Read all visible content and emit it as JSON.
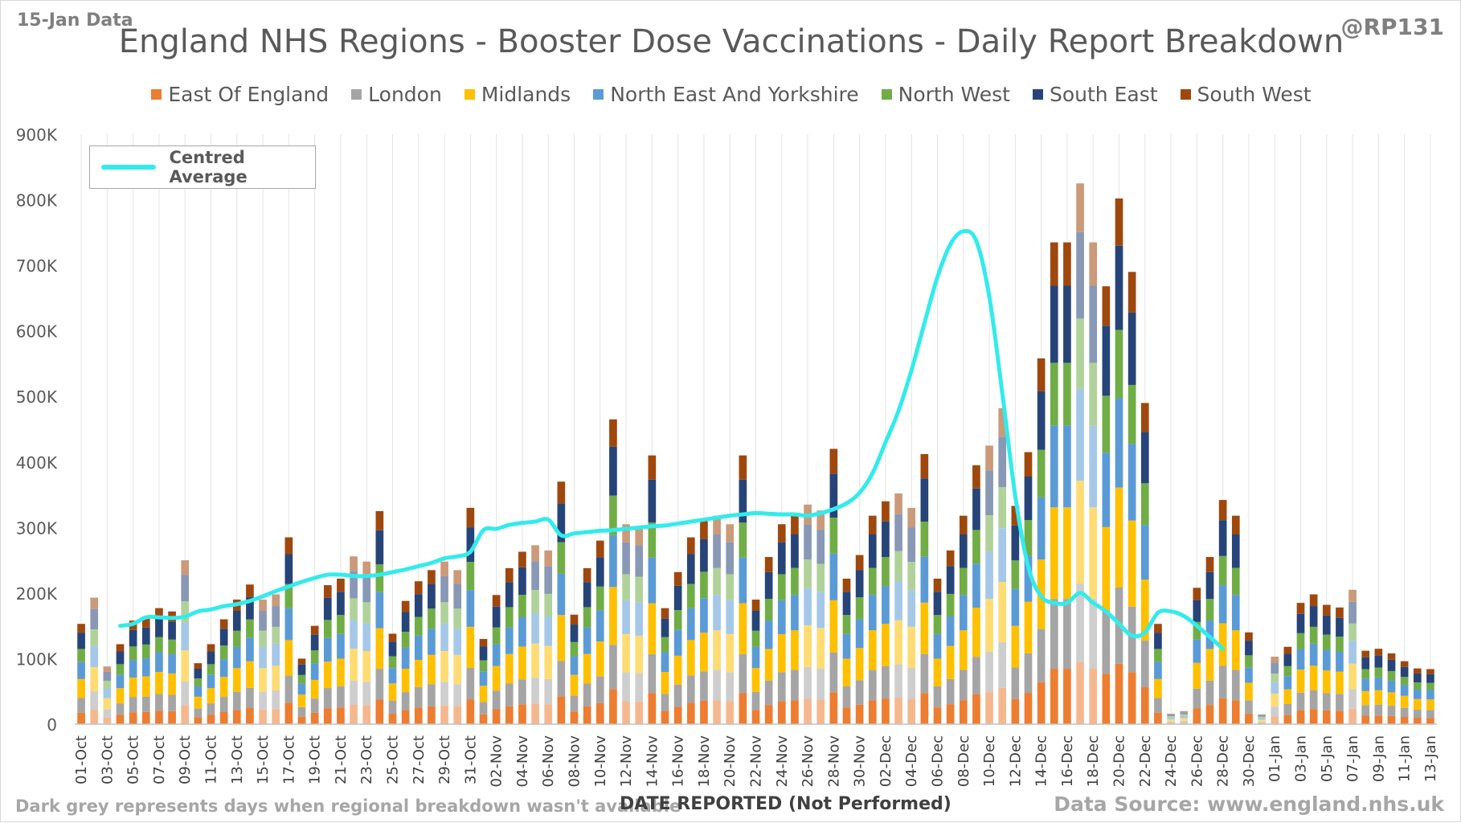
{
  "header": {
    "data_date": "15-Jan Data",
    "handle": "@RP131",
    "title": "England NHS Regions - Booster Dose Vaccinations - Daily Report Breakdown"
  },
  "footer": {
    "note": "Dark grey represents days when regional breakdown wasn't available",
    "source": "Data Source: www.england.nhs.uk"
  },
  "chart_data": {
    "type": "bar",
    "stacked": true,
    "title": "England NHS Regions - Booster Dose Vaccinations - Daily Report Breakdown",
    "xlabel": "DATE REPORTED (Not Performed)",
    "ylabel": "",
    "ylim": [
      0,
      900000
    ],
    "yticks": [
      0,
      100000,
      200000,
      300000,
      400000,
      500000,
      600000,
      700000,
      800000,
      900000
    ],
    "ytick_labels": [
      "0",
      "100K",
      "200K",
      "300K",
      "400K",
      "500K",
      "600K",
      "700K",
      "800K",
      "900K"
    ],
    "grid": "vertical",
    "legend": "top",
    "start_date": "2021-10-01",
    "tick_labels": [
      "01-Oct",
      "03-Oct",
      "05-Oct",
      "07-Oct",
      "09-Oct",
      "11-Oct",
      "13-Oct",
      "15-Oct",
      "17-Oct",
      "19-Oct",
      "21-Oct",
      "23-Oct",
      "25-Oct",
      "27-Oct",
      "29-Oct",
      "31-Oct",
      "02-Nov",
      "04-Nov",
      "06-Nov",
      "08-Nov",
      "10-Nov",
      "12-Nov",
      "14-Nov",
      "16-Nov",
      "18-Nov",
      "20-Nov",
      "22-Nov",
      "24-Nov",
      "26-Nov",
      "28-Nov",
      "30-Nov",
      "02-Dec",
      "04-Dec",
      "06-Dec",
      "08-Dec",
      "10-Dec",
      "12-Dec",
      "14-Dec",
      "16-Dec",
      "18-Dec",
      "20-Dec",
      "22-Dec",
      "24-Dec",
      "26-Dec",
      "28-Dec",
      "30-Dec",
      "01-Jan",
      "03-Jan",
      "05-Jan",
      "07-Jan",
      "09-Jan",
      "11-Jan",
      "13-Jan"
    ],
    "regions": [
      {
        "name": "East Of England",
        "color": "#ed7d31"
      },
      {
        "name": "London",
        "color": "#a5a5a5"
      },
      {
        "name": "Midlands",
        "color": "#ffc000"
      },
      {
        "name": "North East And Yorkshire",
        "color": "#5b9bd5"
      },
      {
        "name": "North West",
        "color": "#70ad47"
      },
      {
        "name": "South East",
        "color": "#264478"
      },
      {
        "name": "South West",
        "color": "#9e480e"
      }
    ],
    "faded_color_days": [
      1,
      2,
      8,
      14,
      15,
      21,
      22,
      28,
      29,
      35,
      36,
      42,
      43,
      49,
      50,
      56,
      57,
      63,
      64,
      70,
      71,
      77,
      78,
      84,
      85,
      91,
      92,
      98
    ],
    "totals": [
      153000,
      193000,
      88000,
      122000,
      158000,
      162000,
      177000,
      172000,
      250000,
      93000,
      122000,
      160000,
      190000,
      213000,
      190000,
      198000,
      285000,
      100000,
      150000,
      212000,
      222000,
      256000,
      248000,
      325000,
      138000,
      188000,
      218000,
      235000,
      248000,
      235000,
      330000,
      130000,
      197000,
      238000,
      263000,
      273000,
      265000,
      370000,
      167000,
      238000,
      280000,
      465000,
      305000,
      300000,
      410000,
      177000,
      232000,
      285000,
      310000,
      318000,
      305000,
      410000,
      190000,
      255000,
      305000,
      318000,
      335000,
      326000,
      420000,
      222000,
      258000,
      318000,
      340000,
      352000,
      330000,
      412000,
      222000,
      265000,
      318000,
      395000,
      425000,
      482000,
      333000,
      415000,
      558000,
      735000,
      735000,
      825000,
      735000,
      668000,
      802000,
      690000,
      490000,
      153000,
      16000,
      20000,
      208000,
      255000,
      342000,
      318000,
      140000,
      15000,
      103000,
      118000,
      185000,
      198000,
      182000,
      178000,
      205000,
      112000,
      115000,
      108000,
      96000,
      85000,
      84000
    ],
    "centred_average": {
      "name": "Centred Average",
      "color": "#33ebeb",
      "start_index": 3,
      "values": [
        150000,
        153000,
        163000,
        163000,
        162000,
        164000,
        172000,
        175000,
        180000,
        183000,
        188000,
        195000,
        203000,
        210000,
        217000,
        223000,
        228000,
        228000,
        226000,
        226000,
        228000,
        232000,
        236000,
        241000,
        246000,
        253000,
        256000,
        263000,
        296000,
        298000,
        304000,
        307000,
        309000,
        312000,
        288000,
        291000,
        293000,
        295000,
        296000,
        298000,
        300000,
        302000,
        303000,
        306000,
        309000,
        312000,
        315000,
        318000,
        320000,
        322000,
        321000,
        320000,
        320000,
        318000,
        322000,
        328000,
        337000,
        353000,
        383000,
        430000,
        478000,
        540000,
        612000,
        682000,
        732000,
        752000,
        737000,
        652000,
        505000,
        348000,
        240000,
        195000,
        185000,
        185000,
        200000,
        185000,
        172000,
        153000,
        135000,
        140000,
        170000,
        172000,
        165000,
        150000,
        133000,
        115000
      ]
    }
  }
}
